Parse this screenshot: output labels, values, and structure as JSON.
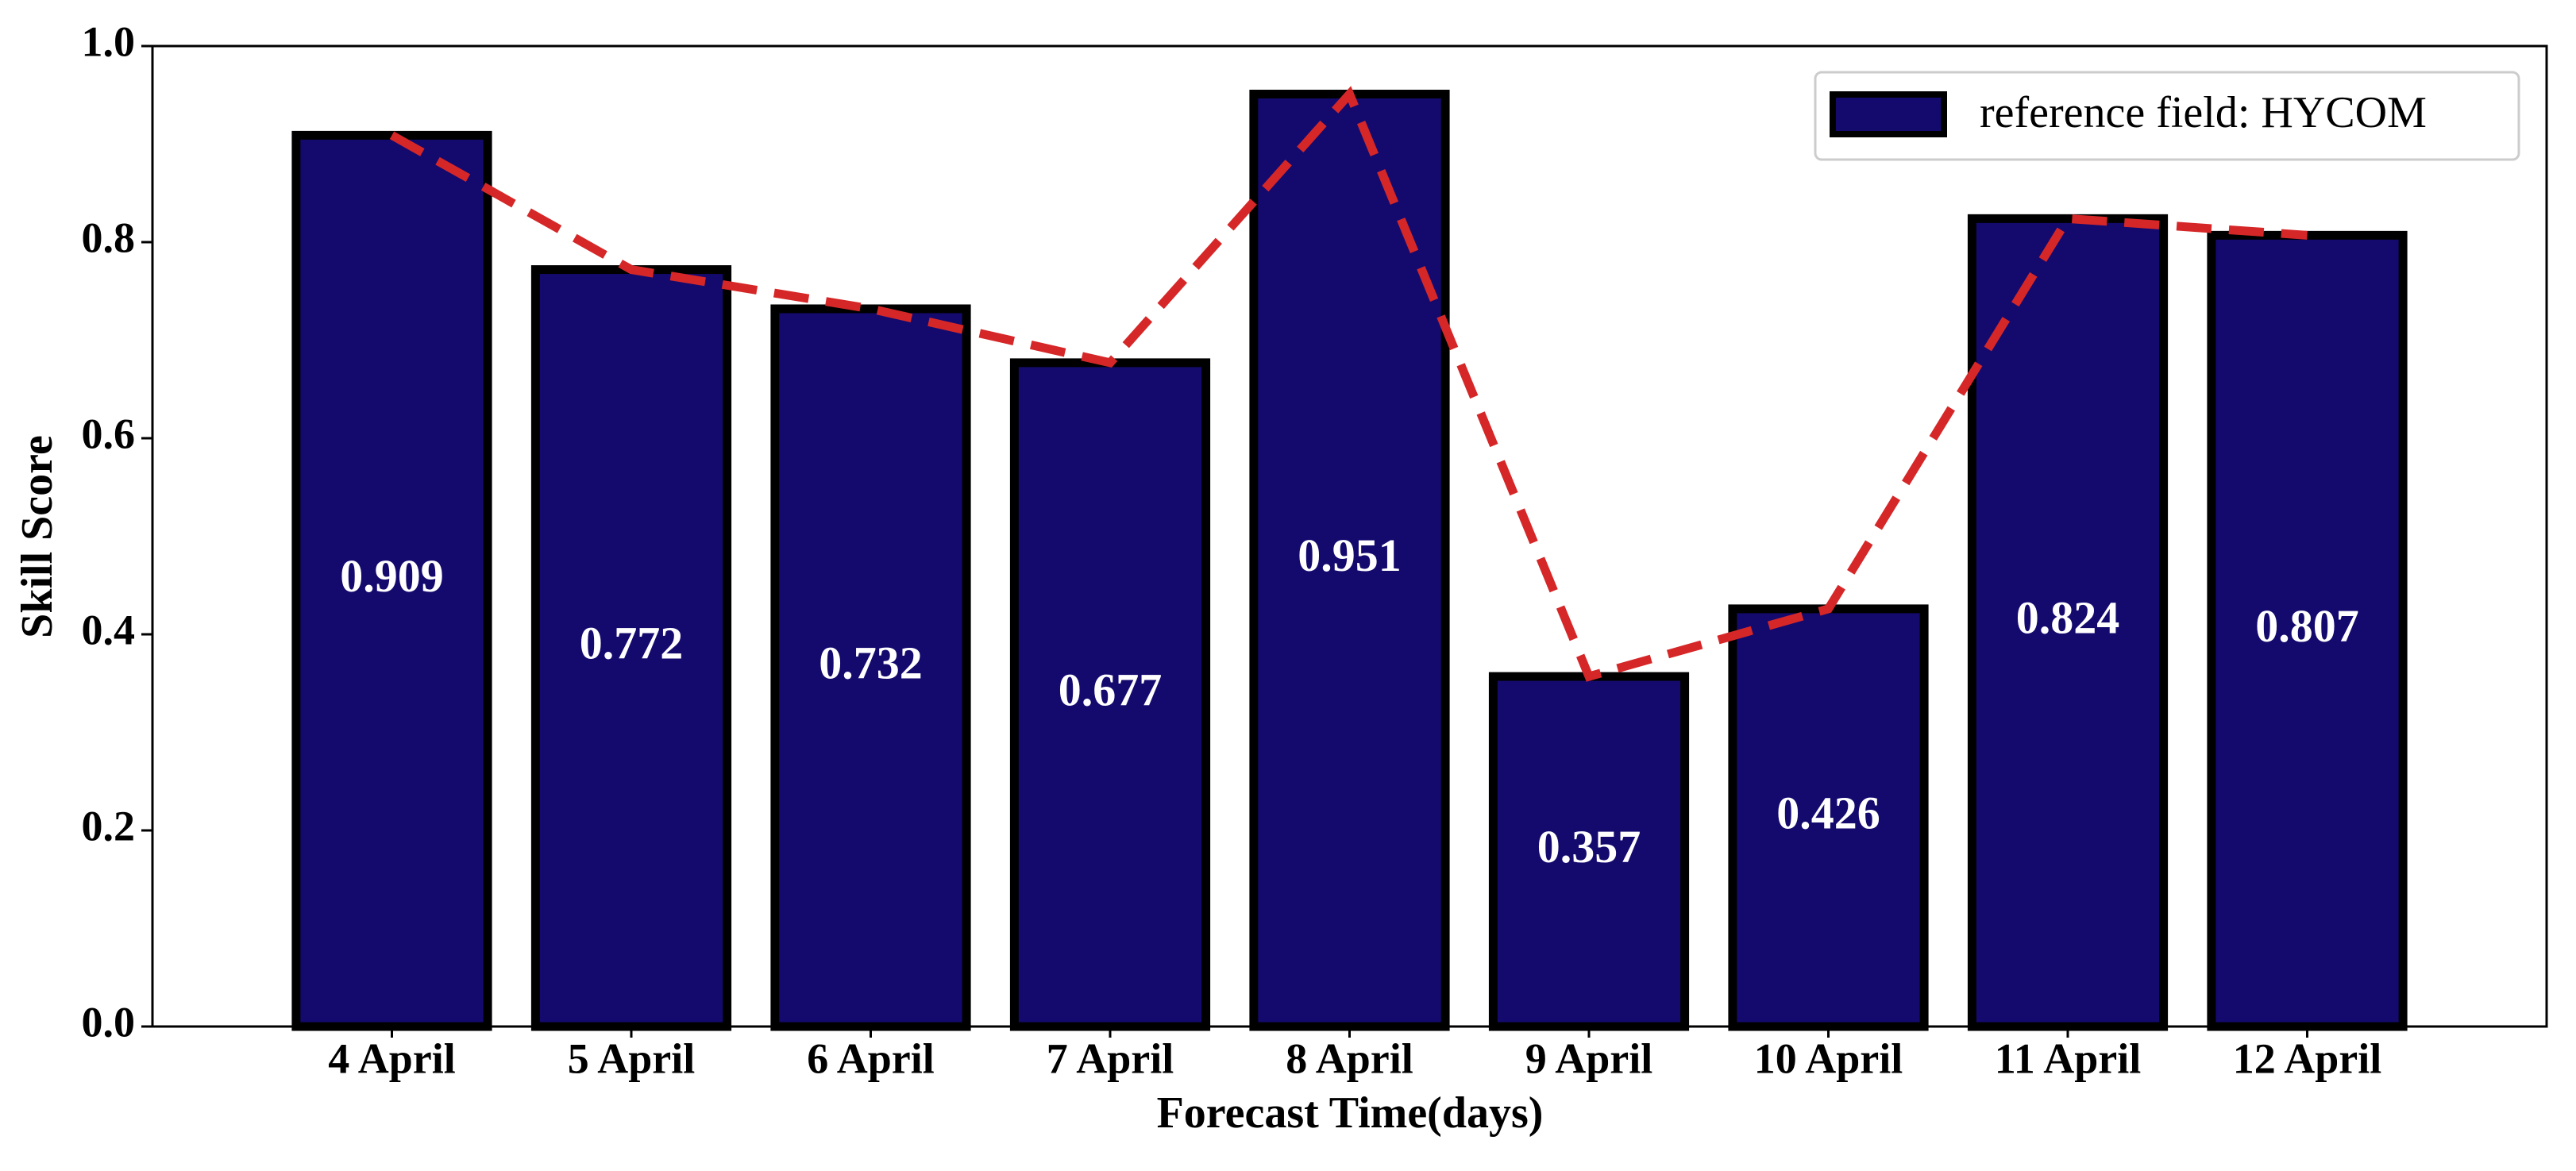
{
  "chart_data": {
    "type": "bar",
    "xlabel": "Forecast Time(days)",
    "ylabel": "Skill Score",
    "categories": [
      "4 April",
      "5 April",
      "6 April",
      "7 April",
      "8 April",
      "9 April",
      "10 April",
      "11 April",
      "12 April"
    ],
    "series": [
      {
        "name": "reference field: HYCOM",
        "color": "#140a6e",
        "values": [
          0.909,
          0.772,
          0.732,
          0.677,
          0.951,
          0.357,
          0.426,
          0.824,
          0.807
        ]
      }
    ],
    "edge_color": "#000000",
    "line_color": "#d62728",
    "ylim": [
      0,
      1
    ],
    "yticks": [
      {
        "value": 0,
        "label": "0.0"
      },
      0.2,
      0.4,
      0.6,
      0.8,
      {
        "value": 1,
        "label": "1.0"
      }
    ],
    "legend": "upper right"
  }
}
